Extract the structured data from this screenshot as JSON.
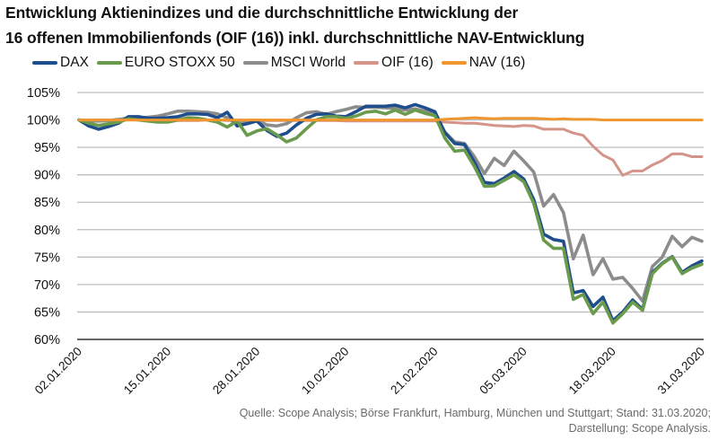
{
  "chart_data": {
    "type": "line",
    "title": "Entwicklung Aktienindizes und die durchschnittliche Entwicklung der",
    "subtitle": "16 offenen Immobilienfonds (OIF (16)) inkl. durchschnittliche NAV-Entwicklung",
    "xlabel": "",
    "ylabel": "",
    "ylim": [
      60,
      105
    ],
    "yticks": [
      60,
      65,
      70,
      75,
      80,
      85,
      90,
      95,
      100,
      105
    ],
    "ytick_labels": [
      "60%",
      "65%",
      "70%",
      "75%",
      "80%",
      "85%",
      "90%",
      "95%",
      "100%",
      "105%"
    ],
    "x_tick_labels": [
      "02.01.2020",
      "15.01.2020",
      "28.01.2020",
      "10.02.2020",
      "21.02.2020",
      "05.03.2020",
      "18.03.2020",
      "31.03.2020"
    ],
    "x_tick_step": 9,
    "n_points": 64,
    "grid": true,
    "legend_position": "top",
    "series": [
      {
        "name": "DAX",
        "color": "#1f4e8c",
        "values": [
          100,
          98.9,
          98.3,
          98.8,
          99.4,
          100.6,
          100.6,
          100.3,
          100.3,
          100.4,
          100.6,
          101.1,
          101.1,
          101.0,
          100.4,
          101.4,
          98.9,
          99.3,
          99.8,
          98.1,
          97.0,
          97.6,
          99.1,
          100.3,
          101.0,
          101.1,
          100.7,
          100.6,
          101.5,
          102.5,
          102.5,
          102.5,
          102.7,
          102.2,
          102.8,
          102.2,
          101.5,
          97.7,
          95.7,
          95.5,
          92.3,
          88.6,
          88.4,
          89.4,
          90.6,
          89.2,
          85.5,
          79.2,
          78.2,
          77.9,
          68.5,
          68.9,
          66.0,
          67.7,
          63.4,
          65.0,
          67.2,
          65.5,
          72.2,
          73.9,
          75.1,
          72.2,
          73.4,
          74.3
        ]
      },
      {
        "name": "EURO STOXX 50",
        "color": "#6a9a4b",
        "values": [
          100,
          99.4,
          99.0,
          99.3,
          99.6,
          100.2,
          100.0,
          99.8,
          99.6,
          99.6,
          100.0,
          100.4,
          100.3,
          100.0,
          99.6,
          98.7,
          99.8,
          97.2,
          98.0,
          98.4,
          97.3,
          96.0,
          96.7,
          98.4,
          100.0,
          100.6,
          100.6,
          100.3,
          100.7,
          101.4,
          101.6,
          101.1,
          101.8,
          101.0,
          101.8,
          101.2,
          100.8,
          96.7,
          94.3,
          94.5,
          91.5,
          87.9,
          88.0,
          89.0,
          90.0,
          88.7,
          84.8,
          78.1,
          76.6,
          76.6,
          67.3,
          68.2,
          64.7,
          66.8,
          63.0,
          64.7,
          66.8,
          65.3,
          72.0,
          73.8,
          75.0,
          72.0,
          73.0,
          73.7
        ]
      },
      {
        "name": "MSCI World",
        "color": "#8c8c8c",
        "values": [
          100,
          99.8,
          99.8,
          99.9,
          100.1,
          100.3,
          100.3,
          100.5,
          100.7,
          101.1,
          101.6,
          101.6,
          101.5,
          101.4,
          101.1,
          100.4,
          99.2,
          99.6,
          99.9,
          99.1,
          98.9,
          99.3,
          100.4,
          101.3,
          101.5,
          101.0,
          101.5,
          101.9,
          102.4,
          102.3,
          102.3,
          102.2,
          102.1,
          101.8,
          102.0,
          101.6,
          101.0,
          97.8,
          96.0,
          95.7,
          93.3,
          90.2,
          93.0,
          91.7,
          94.3,
          92.5,
          90.5,
          84.3,
          86.4,
          83.1,
          74.7,
          79.0,
          71.8,
          74.7,
          71.0,
          71.3,
          69.3,
          67.0,
          73.3,
          75.0,
          78.8,
          76.9,
          78.6,
          77.9
        ]
      },
      {
        "name": "OIF (16)",
        "color": "#d4948a",
        "values": [
          100,
          100,
          100,
          100,
          100,
          100,
          100,
          100,
          100,
          99.9,
          99.9,
          99.9,
          99.9,
          100.0,
          100.0,
          99.9,
          99.9,
          99.9,
          99.9,
          99.9,
          99.9,
          99.9,
          99.9,
          99.9,
          99.9,
          99.9,
          99.9,
          99.8,
          99.8,
          99.8,
          99.8,
          99.8,
          99.8,
          99.8,
          99.8,
          99.8,
          99.8,
          99.6,
          99.5,
          99.4,
          99.4,
          99.2,
          99.0,
          98.9,
          98.8,
          99.0,
          98.9,
          98.3,
          98.3,
          98.3,
          97.6,
          97.2,
          95.2,
          93.6,
          92.7,
          89.9,
          90.7,
          90.7,
          91.8,
          92.6,
          93.8,
          93.8,
          93.3,
          93.3
        ]
      },
      {
        "name": "NAV (16)",
        "color": "#f0962e",
        "values": [
          100,
          100,
          100,
          100,
          100,
          100,
          100,
          100,
          100,
          100,
          100,
          100,
          100,
          100,
          100,
          100,
          100,
          100,
          100,
          100,
          100,
          100,
          100,
          100,
          100,
          100,
          100,
          100,
          100,
          100,
          100,
          100,
          100,
          100,
          100,
          100,
          100,
          100.1,
          100.2,
          100.3,
          100.4,
          100.3,
          100.2,
          100.3,
          100.3,
          100.3,
          100.3,
          100.2,
          100.1,
          100.2,
          100.1,
          100.1,
          100.1,
          100.0,
          100.0,
          100.0,
          100.0,
          100.0,
          100.0,
          100.0,
          100.0,
          100.0,
          100.0,
          100.0
        ]
      }
    ]
  },
  "source": {
    "line1": "Quelle: Scope Analysis; Börse Frankfurt, Hamburg, München und Stuttgart; Stand: 31.03.2020;",
    "line2": "Darstellung: Scope Analysis."
  }
}
